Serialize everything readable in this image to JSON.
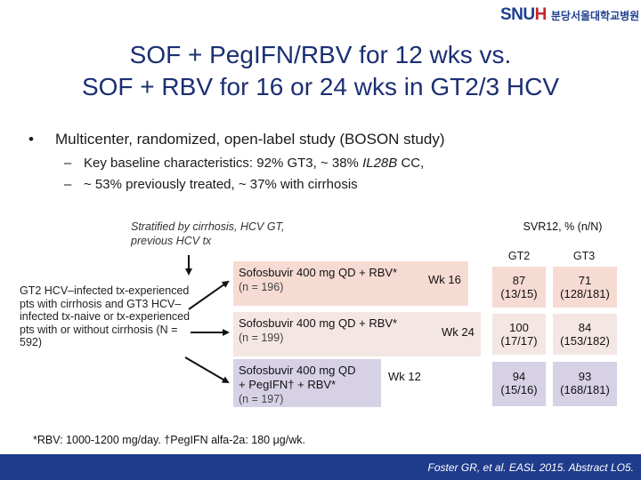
{
  "logo": {
    "mark_main": "SNU",
    "mark_accent": "H",
    "text": "분당서울대학교병원"
  },
  "title": {
    "line1": "SOF + PegIFN/RBV for 12 wks vs.",
    "line2": "SOF + RBV for 16 or 24 wks in GT2/3 HCV"
  },
  "bullet": {
    "symbol": "•",
    "text": "Multicenter, randomized, open-label study (BOSON study)"
  },
  "subbullets": [
    {
      "dash": "–",
      "text_before": "Key baseline characteristics: 92% GT3, ~ 38% ",
      "text_italic": "IL28B",
      "text_after": " CC,"
    },
    {
      "dash": "–",
      "text": "~ 53% previously treated, ~ 37% with cirrhosis"
    }
  ],
  "stratified_note": "Stratified by cirrhosis, HCV GT, previous HCV tx",
  "population": "GT2 HCV–infected tx-experienced pts with cirrhosis and GT3 HCV–infected tx-naive or tx-experienced pts with or without cirrhosis (N = 592)",
  "arms": [
    {
      "line1": "Sofosbuvir 400 mg QD + RBV*",
      "line2": "",
      "n": "(n = 196)",
      "week": "Wk 16",
      "color": "#f6dbd3"
    },
    {
      "line1": "Sofosbuvir 400 mg QD + RBV*",
      "line2": "",
      "n": "(n = 199)",
      "week": "Wk 24",
      "color": "#f4e6e3"
    },
    {
      "line1": "Sofosbuvir 400 mg QD",
      "line2": "+ PegIFN† + RBV*",
      "n": "(n = 197)",
      "week": "Wk 12",
      "color": "#d7d1e6"
    }
  ],
  "svr": {
    "header": "SVR12, % (n/N)",
    "columns": [
      "GT2",
      "GT3"
    ],
    "rows": [
      {
        "gt2_pct": "87",
        "gt2_n": "(13/15)",
        "gt3_pct": "71",
        "gt3_n": "(128/181)",
        "color": "#f6dbd3"
      },
      {
        "gt2_pct": "100",
        "gt2_n": "(17/17)",
        "gt3_pct": "84",
        "gt3_n": "(153/182)",
        "color": "#f4e6e3"
      },
      {
        "gt2_pct": "94",
        "gt2_n": "(15/16)",
        "gt3_pct": "93",
        "gt3_n": "(168/181)",
        "color": "#d7d1e6"
      }
    ]
  },
  "footnote": "*RBV: 1000-1200 mg/day. †PegIFN alfa-2a: 180 μg/wk.",
  "citation": "Foster GR, et al. EASL 2015. Abstract LO5.",
  "colors": {
    "title": "#1b2f73",
    "footer": "#1f3c8c"
  }
}
